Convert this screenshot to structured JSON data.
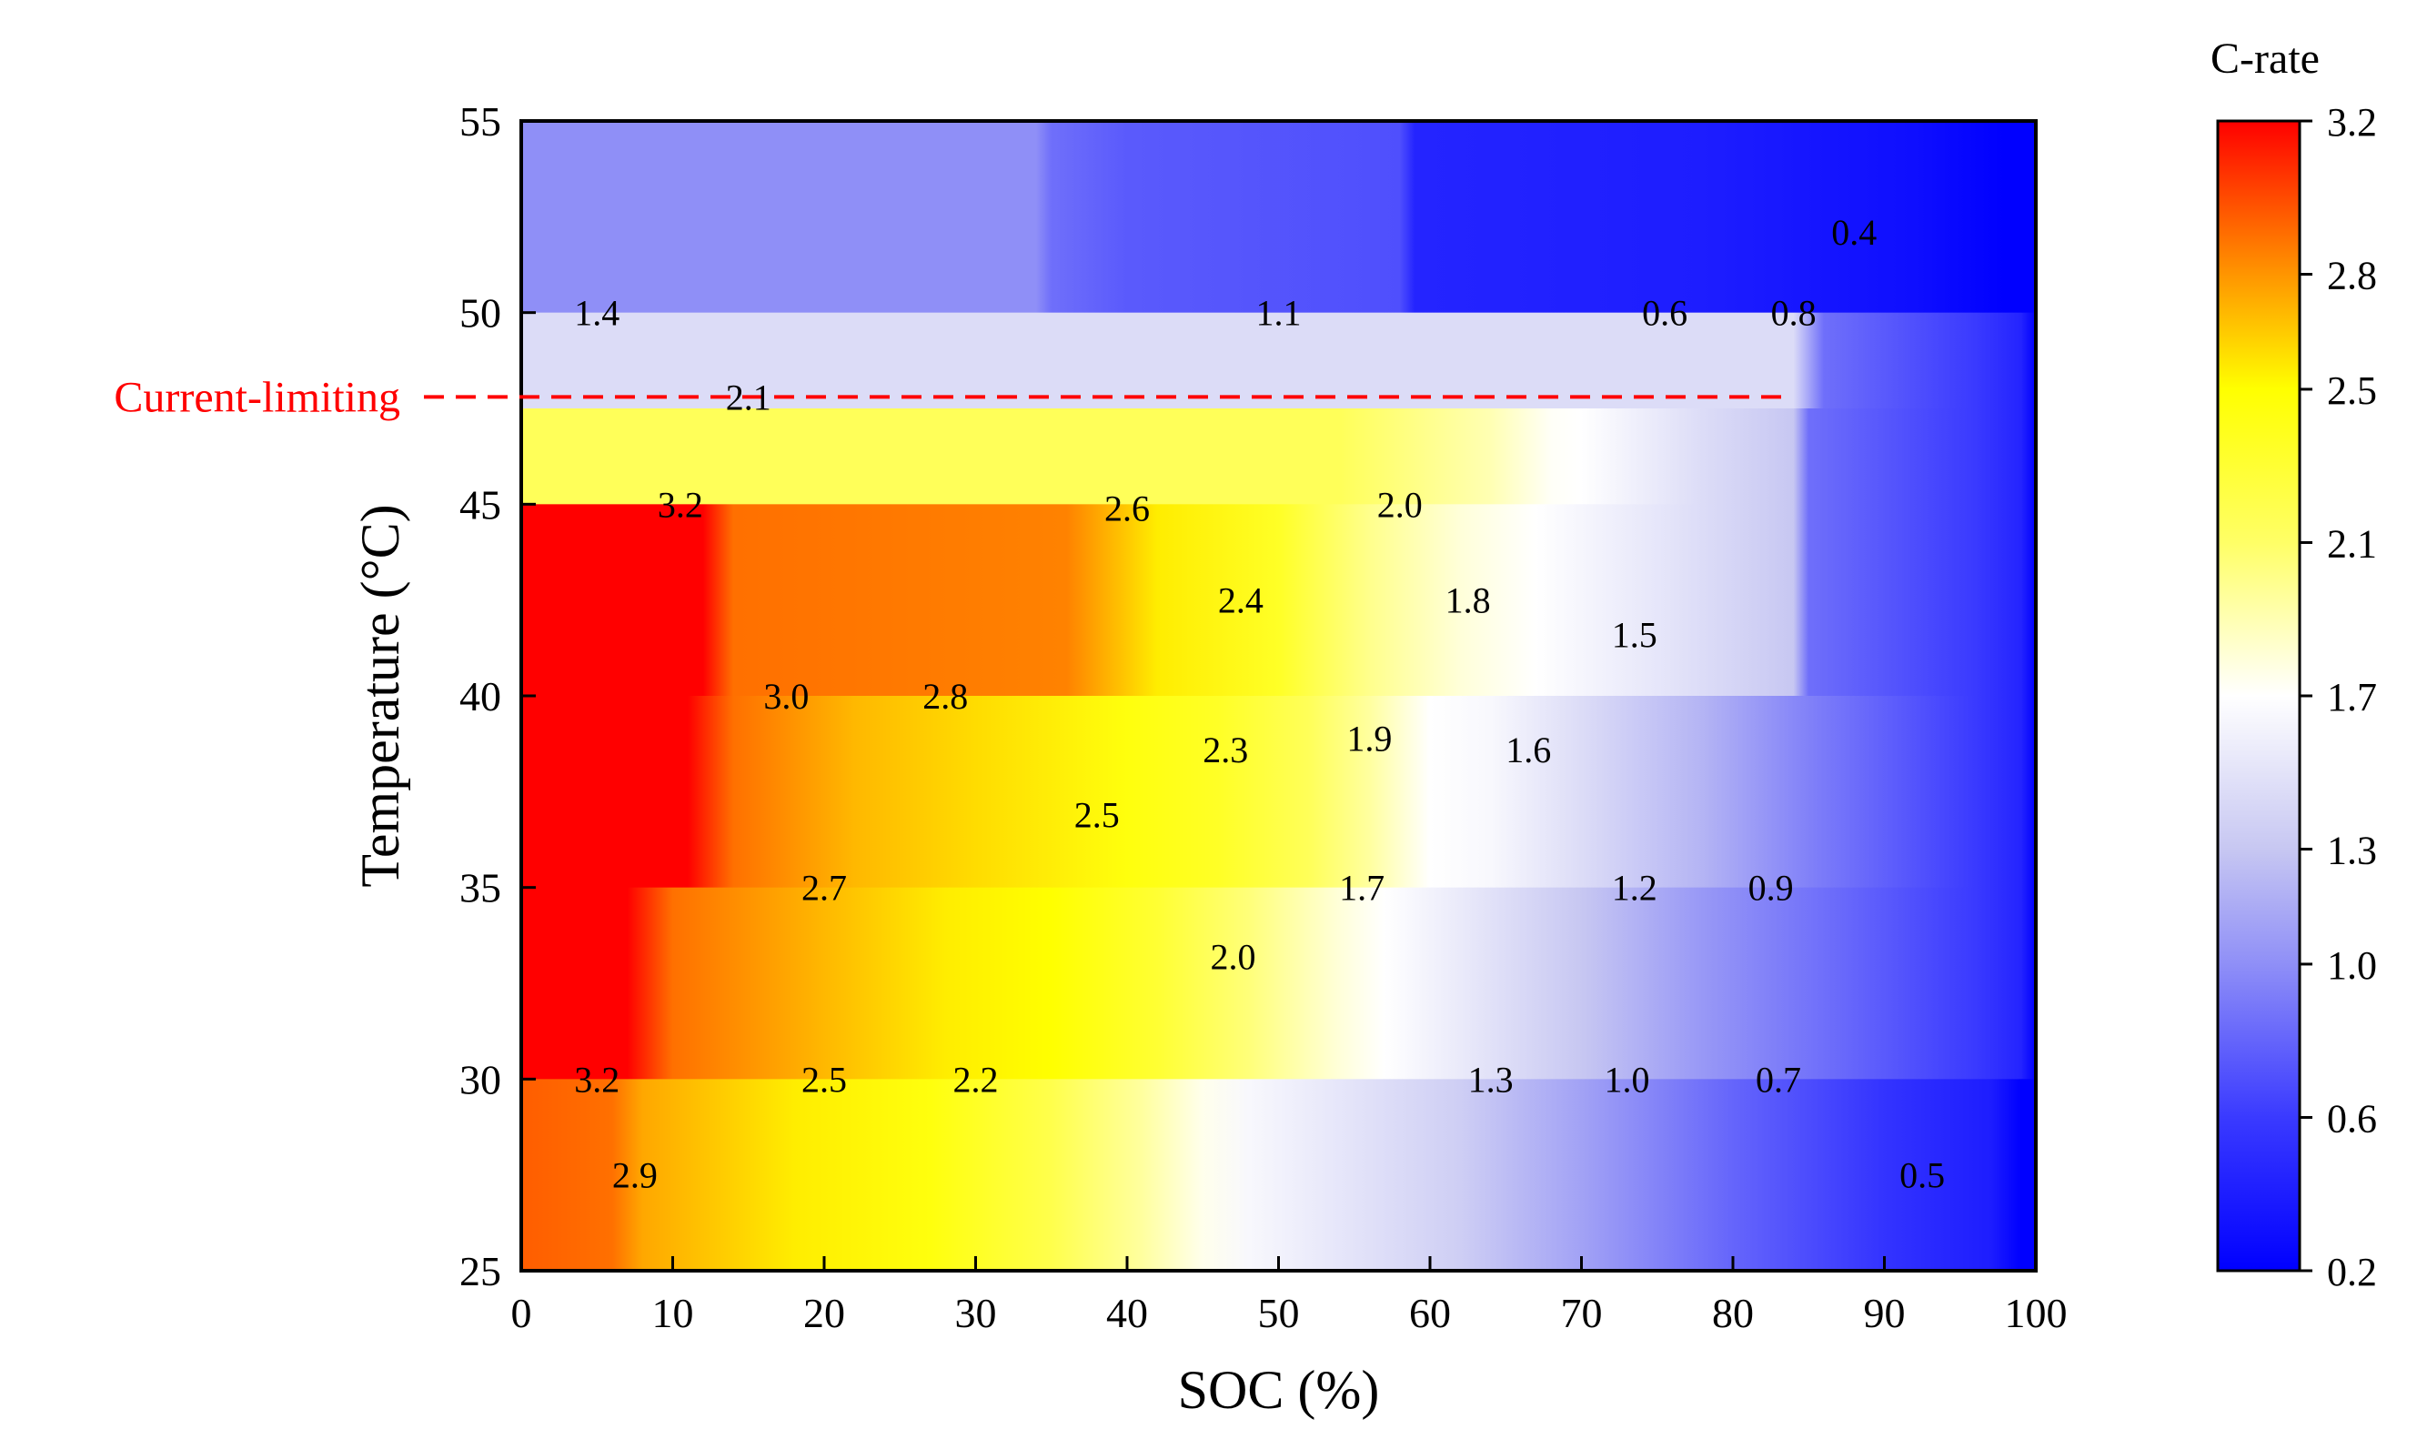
{
  "chart_data": {
    "type": "heatmap",
    "title": "",
    "xlabel": "SOC (%)",
    "ylabel": "Temperature (°C)",
    "xlim": [
      0,
      100
    ],
    "ylim": [
      25,
      55
    ],
    "x_ticks": [
      "0",
      "10",
      "20",
      "30",
      "40",
      "50",
      "60",
      "70",
      "80",
      "90",
      "100"
    ],
    "y_ticks": [
      "25",
      "30",
      "35",
      "40",
      "45",
      "50",
      "55"
    ],
    "colorbar": {
      "title": "C-rate",
      "min": 0.2,
      "max": 3.2,
      "ticks": [
        "0.2",
        "0.6",
        "1.0",
        "1.3",
        "1.7",
        "2.1",
        "2.5",
        "2.8",
        "3.2"
      ],
      "stops": [
        {
          "v": 0.2,
          "c": "#0000ff"
        },
        {
          "v": 0.6,
          "c": "#3a3aff"
        },
        {
          "v": 1.0,
          "c": "#8f8ff7"
        },
        {
          "v": 1.3,
          "c": "#c7c7f2"
        },
        {
          "v": 1.7,
          "c": "#ffffff"
        },
        {
          "v": 2.1,
          "c": "#ffff66"
        },
        {
          "v": 2.5,
          "c": "#ffff00"
        },
        {
          "v": 2.8,
          "c": "#ff9500"
        },
        {
          "v": 3.2,
          "c": "#ff0000"
        }
      ]
    },
    "bands": [
      {
        "t0": 50,
        "t1": 55,
        "points": [
          [
            0,
            1.0
          ],
          [
            34,
            1.0
          ],
          [
            35,
            0.85
          ],
          [
            40,
            0.75
          ],
          [
            58,
            0.7
          ],
          [
            59,
            0.45
          ],
          [
            78,
            0.4
          ],
          [
            92,
            0.3
          ],
          [
            98,
            0.2
          ],
          [
            100,
            0.2
          ]
        ]
      },
      {
        "t0": 47.5,
        "t1": 50,
        "points": [
          [
            0,
            1.45
          ],
          [
            84,
            1.45
          ],
          [
            86,
            0.85
          ],
          [
            96,
            0.6
          ],
          [
            99,
            0.45
          ],
          [
            100,
            0.2
          ]
        ]
      },
      {
        "t0": 45,
        "t1": 47.5,
        "points": [
          [
            0,
            2.15
          ],
          [
            54,
            2.15
          ],
          [
            64,
            1.9
          ],
          [
            68,
            1.72
          ],
          [
            70,
            1.7
          ],
          [
            78,
            1.45
          ],
          [
            84,
            1.3
          ],
          [
            85,
            0.85
          ],
          [
            96,
            0.6
          ],
          [
            99,
            0.45
          ],
          [
            100,
            0.2
          ]
        ]
      },
      {
        "t0": 40,
        "t1": 45,
        "points": [
          [
            0,
            3.2
          ],
          [
            12,
            3.2
          ],
          [
            14,
            2.9
          ],
          [
            36,
            2.85
          ],
          [
            42,
            2.55
          ],
          [
            50,
            2.35
          ],
          [
            56,
            2.0
          ],
          [
            62,
            1.8
          ],
          [
            67,
            1.7
          ],
          [
            76,
            1.5
          ],
          [
            84,
            1.3
          ],
          [
            85,
            0.85
          ],
          [
            96,
            0.6
          ],
          [
            99,
            0.45
          ],
          [
            100,
            0.2
          ]
        ]
      },
      {
        "t0": 35,
        "t1": 40,
        "points": [
          [
            0,
            3.2
          ],
          [
            11,
            3.2
          ],
          [
            14,
            2.9
          ],
          [
            22,
            2.7
          ],
          [
            30,
            2.6
          ],
          [
            40,
            2.45
          ],
          [
            46,
            2.35
          ],
          [
            52,
            2.15
          ],
          [
            56,
            1.95
          ],
          [
            60,
            1.7
          ],
          [
            64,
            1.65
          ],
          [
            70,
            1.45
          ],
          [
            78,
            1.2
          ],
          [
            86,
            0.9
          ],
          [
            96,
            0.6
          ],
          [
            99,
            0.45
          ],
          [
            100,
            0.2
          ]
        ]
      },
      {
        "t0": 30,
        "t1": 35,
        "points": [
          [
            0,
            3.2
          ],
          [
            7,
            3.2
          ],
          [
            10,
            2.9
          ],
          [
            20,
            2.7
          ],
          [
            28,
            2.55
          ],
          [
            35,
            2.5
          ],
          [
            42,
            2.3
          ],
          [
            48,
            2.05
          ],
          [
            54,
            1.8
          ],
          [
            57,
            1.7
          ],
          [
            62,
            1.55
          ],
          [
            70,
            1.3
          ],
          [
            78,
            1.05
          ],
          [
            86,
            0.85
          ],
          [
            96,
            0.6
          ],
          [
            99,
            0.45
          ],
          [
            100,
            0.2
          ]
        ]
      },
      {
        "t0": 25,
        "t1": 30,
        "points": [
          [
            0,
            2.95
          ],
          [
            6,
            2.9
          ],
          [
            8,
            2.75
          ],
          [
            18,
            2.55
          ],
          [
            27,
            2.45
          ],
          [
            35,
            2.2
          ],
          [
            41,
            1.95
          ],
          [
            45,
            1.75
          ],
          [
            48,
            1.65
          ],
          [
            55,
            1.5
          ],
          [
            62,
            1.35
          ],
          [
            70,
            1.1
          ],
          [
            80,
            0.8
          ],
          [
            90,
            0.55
          ],
          [
            97,
            0.4
          ],
          [
            99,
            0.2
          ],
          [
            100,
            0.2
          ]
        ]
      }
    ],
    "annotations": [
      {
        "x": 5,
        "y": 50,
        "label": "1.4"
      },
      {
        "x": 50,
        "y": 50,
        "label": "1.1"
      },
      {
        "x": 75.5,
        "y": 50,
        "label": "0.6"
      },
      {
        "x": 84,
        "y": 50,
        "label": "0.8"
      },
      {
        "x": 88,
        "y": 52.1,
        "label": "0.4"
      },
      {
        "x": 15,
        "y": 47.8,
        "label": "2.1"
      },
      {
        "x": 10.5,
        "y": 45,
        "label": "3.2"
      },
      {
        "x": 40,
        "y": 44.9,
        "label": "2.6"
      },
      {
        "x": 58,
        "y": 45,
        "label": "2.0"
      },
      {
        "x": 47.5,
        "y": 42.5,
        "label": "2.4"
      },
      {
        "x": 62.5,
        "y": 42.5,
        "label": "1.8"
      },
      {
        "x": 73.5,
        "y": 41.6,
        "label": "1.5"
      },
      {
        "x": 17.5,
        "y": 40,
        "label": "3.0"
      },
      {
        "x": 28,
        "y": 40,
        "label": "2.8"
      },
      {
        "x": 46.5,
        "y": 38.6,
        "label": "2.3"
      },
      {
        "x": 56,
        "y": 38.9,
        "label": "1.9"
      },
      {
        "x": 66.5,
        "y": 38.6,
        "label": "1.6"
      },
      {
        "x": 38,
        "y": 36.9,
        "label": "2.5"
      },
      {
        "x": 20,
        "y": 35,
        "label": "2.7"
      },
      {
        "x": 55.5,
        "y": 35,
        "label": "1.7"
      },
      {
        "x": 73.5,
        "y": 35,
        "label": "1.2"
      },
      {
        "x": 82.5,
        "y": 35,
        "label": "0.9"
      },
      {
        "x": 47,
        "y": 33.2,
        "label": "2.0"
      },
      {
        "x": 5,
        "y": 30,
        "label": "3.2"
      },
      {
        "x": 20,
        "y": 30,
        "label": "2.5"
      },
      {
        "x": 30,
        "y": 30,
        "label": "2.2"
      },
      {
        "x": 64,
        "y": 30,
        "label": "1.3"
      },
      {
        "x": 73,
        "y": 30,
        "label": "1.0"
      },
      {
        "x": 83,
        "y": 30,
        "label": "0.7"
      },
      {
        "x": 7.5,
        "y": 27.5,
        "label": "2.9"
      },
      {
        "x": 92.5,
        "y": 27.5,
        "label": "0.5"
      }
    ],
    "reference_line": {
      "label": "Current-limiting",
      "y": 47.8,
      "x_end": 83.5,
      "color": "#ff0000"
    }
  }
}
